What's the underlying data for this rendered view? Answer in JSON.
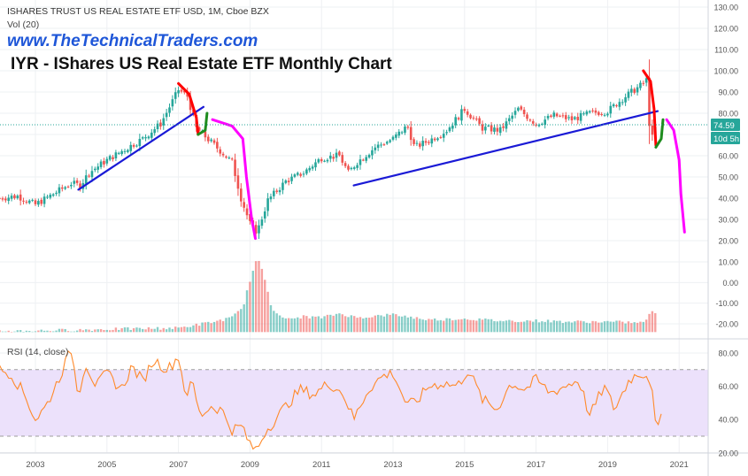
{
  "header": {
    "symbol_line": "ISHARES TRUST US REAL ESTATE ETF USD, 1M, Cboe BZX",
    "volume_label": "Vol (20)",
    "website": "www.TheTechnicalTraders.com",
    "title": "IYR - IShares US Real Estate ETF Monthly Chart"
  },
  "rsi_label": "RSI (14, close)",
  "colors": {
    "up": "#26a69a",
    "down": "#ef5350",
    "trendline": "#1a1ad6",
    "projection": "#ff00ff",
    "curve_red": "#ff0000",
    "curve_green": "#1e8c1e",
    "rsi_line": "#ff8a2b",
    "rsi_band": "#ece1fb",
    "price_tag": "#26a69a"
  },
  "chart_data": [
    {
      "type": "candlestick",
      "title": "ISHARES TRUST US REAL ESTATE ETF USD, 1M, Cboe BZX",
      "x_ticks": [
        "2003",
        "2005",
        "2007",
        "2009",
        "2011",
        "2013",
        "2015",
        "2017",
        "2019",
        "2021"
      ],
      "x_range": [
        2002.0,
        2021.8
      ],
      "y_ticks": [
        130,
        120,
        110,
        100,
        90,
        80,
        70,
        60,
        50,
        40,
        30,
        20
      ],
      "y_ticks_labels": [
        "130.00",
        "120.00",
        "110.00",
        "100.00",
        "90.00",
        "80.00",
        "70.00",
        "60.00",
        "50.00",
        "40.00",
        "30.00",
        "20.00"
      ],
      "ylim": [
        10,
        134
      ],
      "last_price": 74.59,
      "last_price_label": "74.59",
      "countdown_label": "10d 5h",
      "close_series": {
        "x": [
          2002.0,
          2002.5,
          2003.0,
          2003.5,
          2004.0,
          2004.25,
          2004.5,
          2005.0,
          2005.5,
          2006.0,
          2006.5,
          2007.0,
          2007.25,
          2007.5,
          2008.0,
          2008.5,
          2008.75,
          2009.0,
          2009.2,
          2009.5,
          2010.0,
          2010.5,
          2011.0,
          2011.5,
          2011.75,
          2012.0,
          2012.5,
          2013.0,
          2013.4,
          2013.6,
          2014.0,
          2014.5,
          2015.0,
          2015.5,
          2016.0,
          2016.5,
          2017.0,
          2017.5,
          2018.0,
          2018.5,
          2019.0,
          2019.5,
          2020.0,
          2020.1,
          2020.2,
          2020.3,
          2020.4
        ],
        "y": [
          40,
          41,
          37,
          42,
          47,
          46,
          52,
          58,
          63,
          68,
          75,
          91,
          88,
          73,
          65,
          57,
          40,
          28,
          24,
          39,
          48,
          52,
          59,
          60,
          52,
          57,
          64,
          68,
          74,
          64,
          67,
          72,
          82,
          73,
          72,
          82,
          75,
          79,
          77,
          80,
          81,
          88,
          94,
          96,
          65,
          72,
          74.59
        ]
      },
      "annotations": {
        "trendline_1": {
          "x": [
            2004.2,
            2007.7
          ],
          "y": [
            44,
            83
          ]
        },
        "trendline_2": {
          "x": [
            2011.9,
            2020.4
          ],
          "y": [
            46,
            81
          ]
        },
        "curve_red_2007": {
          "x": [
            2007.0,
            2007.3,
            2007.5,
            2007.55
          ],
          "y": [
            94,
            89,
            78,
            70
          ]
        },
        "curve_green_2007": {
          "x": [
            2007.55,
            2007.75,
            2007.8
          ],
          "y": [
            70,
            72,
            80
          ]
        },
        "projection_2008": {
          "x": [
            2007.95,
            2008.5,
            2008.8,
            2008.9,
            2009.05,
            2009.15
          ],
          "y": [
            77,
            74,
            68,
            50,
            30,
            21
          ]
        },
        "curve_red_2020": {
          "x": [
            2020.0,
            2020.2,
            2020.3,
            2020.35
          ],
          "y": [
            100,
            95,
            82,
            65
          ]
        },
        "curve_green_2020": {
          "x": [
            2020.35,
            2020.5,
            2020.55
          ],
          "y": [
            64,
            68,
            77
          ]
        },
        "projection_2020": {
          "x": [
            2020.65,
            2020.85,
            2021.0,
            2021.05,
            2021.15
          ],
          "y": [
            77,
            72,
            58,
            42,
            24
          ]
        }
      }
    },
    {
      "type": "bar",
      "title": "Vol (20)",
      "y_ticks": [
        10,
        0,
        -10,
        -20
      ],
      "y_ticks_labels": [
        "10.00",
        "0.00",
        "-10.00",
        "-20.00"
      ],
      "ylim": [
        -24,
        15
      ],
      "note": "volume histogram, values in axis units",
      "x": [
        2002.0,
        2003.0,
        2004.0,
        2005.0,
        2006.0,
        2007.0,
        2007.5,
        2008.0,
        2008.5,
        2008.8,
        2009.0,
        2009.2,
        2009.4,
        2009.6,
        2010.0,
        2010.5,
        2011.0,
        2011.5,
        2012.0,
        2013.0,
        2014.0,
        2015.0,
        2016.0,
        2017.0,
        2018.0,
        2019.0,
        2020.0,
        2020.2
      ],
      "y": [
        -23.5,
        -23.3,
        -23.0,
        -22.6,
        -22.3,
        -22.0,
        -20.5,
        -19.0,
        -17.0,
        -12.0,
        1.0,
        12.0,
        3.0,
        -12.0,
        -18.0,
        -16.5,
        -17.0,
        -15.0,
        -17.0,
        -15.5,
        -18.0,
        -17.5,
        -18.5,
        -18.5,
        -19.0,
        -19.0,
        -19.5,
        -14.5
      ]
    },
    {
      "type": "line",
      "title": "RSI (14, close)",
      "y_ticks": [
        80,
        60,
        40,
        20
      ],
      "y_ticks_labels": [
        "80.00",
        "60.00",
        "40.00",
        "20.00"
      ],
      "ylim": [
        18,
        86
      ],
      "band": [
        30,
        70
      ],
      "x": [
        2002.0,
        2002.3,
        2002.7,
        2003.0,
        2003.3,
        2003.6,
        2004.0,
        2004.2,
        2004.4,
        2004.7,
        2005.0,
        2005.4,
        2005.7,
        2006.0,
        2006.3,
        2006.7,
        2007.0,
        2007.2,
        2007.4,
        2007.6,
        2007.9,
        2008.2,
        2008.5,
        2008.8,
        2009.0,
        2009.2,
        2009.4,
        2009.7,
        2010.0,
        2010.4,
        2010.8,
        2011.2,
        2011.6,
        2011.9,
        2012.3,
        2012.7,
        2013.0,
        2013.4,
        2013.7,
        2014.0,
        2014.4,
        2014.8,
        2015.1,
        2015.5,
        2015.9,
        2016.3,
        2016.7,
        2017.0,
        2017.4,
        2017.8,
        2018.2,
        2018.5,
        2018.9,
        2019.2,
        2019.6,
        2019.9,
        2020.1,
        2020.25,
        2020.35,
        2020.5
      ],
      "y": [
        70,
        68,
        55,
        40,
        48,
        62,
        82,
        55,
        74,
        60,
        68,
        58,
        72,
        63,
        76,
        70,
        78,
        55,
        62,
        42,
        48,
        46,
        34,
        36,
        24,
        22,
        32,
        40,
        48,
        58,
        55,
        62,
        56,
        40,
        58,
        66,
        68,
        48,
        52,
        60,
        62,
        60,
        70,
        52,
        46,
        62,
        58,
        64,
        56,
        60,
        64,
        42,
        60,
        46,
        64,
        68,
        67,
        60,
        32,
        40
      ]
    }
  ]
}
